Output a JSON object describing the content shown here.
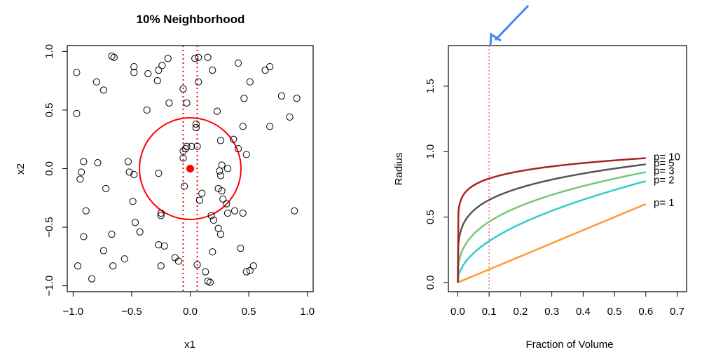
{
  "chart_data": [
    {
      "type": "scatter",
      "title": "10% Neighborhood",
      "xlabel": "x1",
      "ylabel": "x2",
      "xlim": [
        -1.05,
        1.05
      ],
      "ylim": [
        -1.05,
        1.05
      ],
      "x_ticks": [
        "-1.0",
        "-0.5",
        "0.0",
        "0.5",
        "1.0"
      ],
      "y_ticks": [
        "-1.0",
        "-0.5",
        "0.0",
        "0.5",
        "1.0"
      ],
      "grid": false,
      "points": [
        [
          -0.97,
          0.82
        ],
        [
          -0.97,
          0.47
        ],
        [
          -0.93,
          -0.03
        ],
        [
          -0.94,
          -0.09
        ],
        [
          -0.91,
          0.06
        ],
        [
          -0.89,
          -0.36
        ],
        [
          -0.91,
          -0.58
        ],
        [
          -0.96,
          -0.83
        ],
        [
          -0.84,
          -0.94
        ],
        [
          -0.79,
          0.05
        ],
        [
          -0.8,
          0.74
        ],
        [
          -0.74,
          0.67
        ],
        [
          -0.72,
          -0.17
        ],
        [
          -0.74,
          -0.7
        ],
        [
          -0.67,
          0.96
        ],
        [
          -0.65,
          0.95
        ],
        [
          -0.67,
          -0.56
        ],
        [
          -0.66,
          -0.83
        ],
        [
          -0.56,
          -0.77
        ],
        [
          -0.53,
          0.06
        ],
        [
          -0.52,
          -0.03
        ],
        [
          -0.48,
          -0.05
        ],
        [
          -0.49,
          -0.28
        ],
        [
          -0.47,
          -0.46
        ],
        [
          -0.43,
          -0.54
        ],
        [
          -0.48,
          0.87
        ],
        [
          -0.48,
          0.82
        ],
        [
          -0.37,
          0.5
        ],
        [
          -0.36,
          0.81
        ],
        [
          -0.28,
          0.75
        ],
        [
          -0.27,
          0.84
        ],
        [
          -0.24,
          0.88
        ],
        [
          -0.19,
          0.94
        ],
        [
          -0.18,
          0.56
        ],
        [
          -0.27,
          -0.04
        ],
        [
          -0.25,
          -0.38
        ],
        [
          -0.25,
          -0.4
        ],
        [
          -0.27,
          -0.65
        ],
        [
          -0.22,
          -0.66
        ],
        [
          -0.25,
          -0.83
        ],
        [
          -0.13,
          -0.76
        ],
        [
          -0.1,
          -0.79
        ],
        [
          -0.06,
          0.68
        ],
        [
          -0.06,
          0.15
        ],
        [
          -0.04,
          0.17
        ],
        [
          -0.03,
          0.19
        ],
        [
          -0.06,
          0.09
        ],
        [
          -0.05,
          -0.15
        ],
        [
          -0.03,
          0.56
        ],
        [
          0.01,
          0.19
        ],
        [
          0.04,
          0.94
        ],
        [
          0.07,
          0.95
        ],
        [
          0.07,
          0.74
        ],
        [
          0.05,
          0.38
        ],
        [
          0.05,
          0.35
        ],
        [
          0.06,
          0.19
        ],
        [
          0.08,
          -0.27
        ],
        [
          0.1,
          -0.21
        ],
        [
          0.06,
          -0.82
        ],
        [
          0.13,
          -0.88
        ],
        [
          0.15,
          -0.96
        ],
        [
          0.17,
          -0.97
        ],
        [
          0.15,
          0.95
        ],
        [
          0.19,
          0.84
        ],
        [
          0.18,
          -0.4
        ],
        [
          0.19,
          -0.71
        ],
        [
          0.2,
          -0.44
        ],
        [
          0.23,
          0.49
        ],
        [
          0.24,
          -0.51
        ],
        [
          0.26,
          0.24
        ],
        [
          0.25,
          -0.02
        ],
        [
          0.26,
          -0.06
        ],
        [
          0.27,
          0.03
        ],
        [
          0.27,
          -0.19
        ],
        [
          0.28,
          -0.26
        ],
        [
          0.31,
          -0.3
        ],
        [
          0.32,
          -0.38
        ],
        [
          0.24,
          -0.17
        ],
        [
          0.26,
          -0.56
        ],
        [
          0.32,
          0.0
        ],
        [
          0.37,
          0.25
        ],
        [
          0.41,
          0.17
        ],
        [
          0.45,
          -0.38
        ],
        [
          0.38,
          -0.36
        ],
        [
          0.43,
          -0.68
        ],
        [
          0.45,
          0.36
        ],
        [
          0.46,
          0.6
        ],
        [
          0.48,
          0.12
        ],
        [
          0.51,
          0.74
        ],
        [
          0.51,
          -0.87
        ],
        [
          0.54,
          -0.83
        ],
        [
          0.48,
          -0.88
        ],
        [
          0.41,
          0.9
        ],
        [
          0.64,
          0.84
        ],
        [
          0.68,
          0.87
        ],
        [
          0.68,
          0.36
        ],
        [
          0.78,
          0.62
        ],
        [
          0.85,
          0.44
        ],
        [
          0.91,
          0.6
        ],
        [
          0.89,
          -0.36
        ]
      ],
      "target_point": [
        0.0,
        0.0
      ],
      "neighborhood_radius": 0.17,
      "vertical_lines": [
        -0.06,
        0.06
      ],
      "colors": {
        "points": "#000000",
        "target": "#ff0000",
        "circle": "#ff0000",
        "lines": "#ff0000"
      }
    },
    {
      "type": "line",
      "xlabel": "Fraction of Volume",
      "ylabel": "Radius",
      "xlim": [
        -0.03,
        0.73
      ],
      "ylim": [
        -0.07,
        1.81
      ],
      "x_ticks": [
        "0.0",
        "0.1",
        "0.2",
        "0.3",
        "0.4",
        "0.5",
        "0.6",
        "0.7"
      ],
      "y_ticks": [
        "0.0",
        "0.5",
        "1.0",
        "1.5"
      ],
      "grid": false,
      "x_range": [
        0,
        0.6
      ],
      "formula": "radius = fraction^(1/p)",
      "vline_x": 0.1,
      "vline_color": "#ff6666",
      "arrow_color": "#4285f4",
      "series": [
        {
          "name": "p= 1",
          "p": 1,
          "color": "#ff9933"
        },
        {
          "name": "p= 2",
          "p": 2,
          "color": "#33cccc"
        },
        {
          "name": "p= 3",
          "p": 3,
          "color": "#77c777"
        },
        {
          "name": "p= 5",
          "p": 5,
          "color": "#555555"
        },
        {
          "name": "p= 10",
          "p": 10,
          "color": "#a82424"
        }
      ]
    }
  ]
}
